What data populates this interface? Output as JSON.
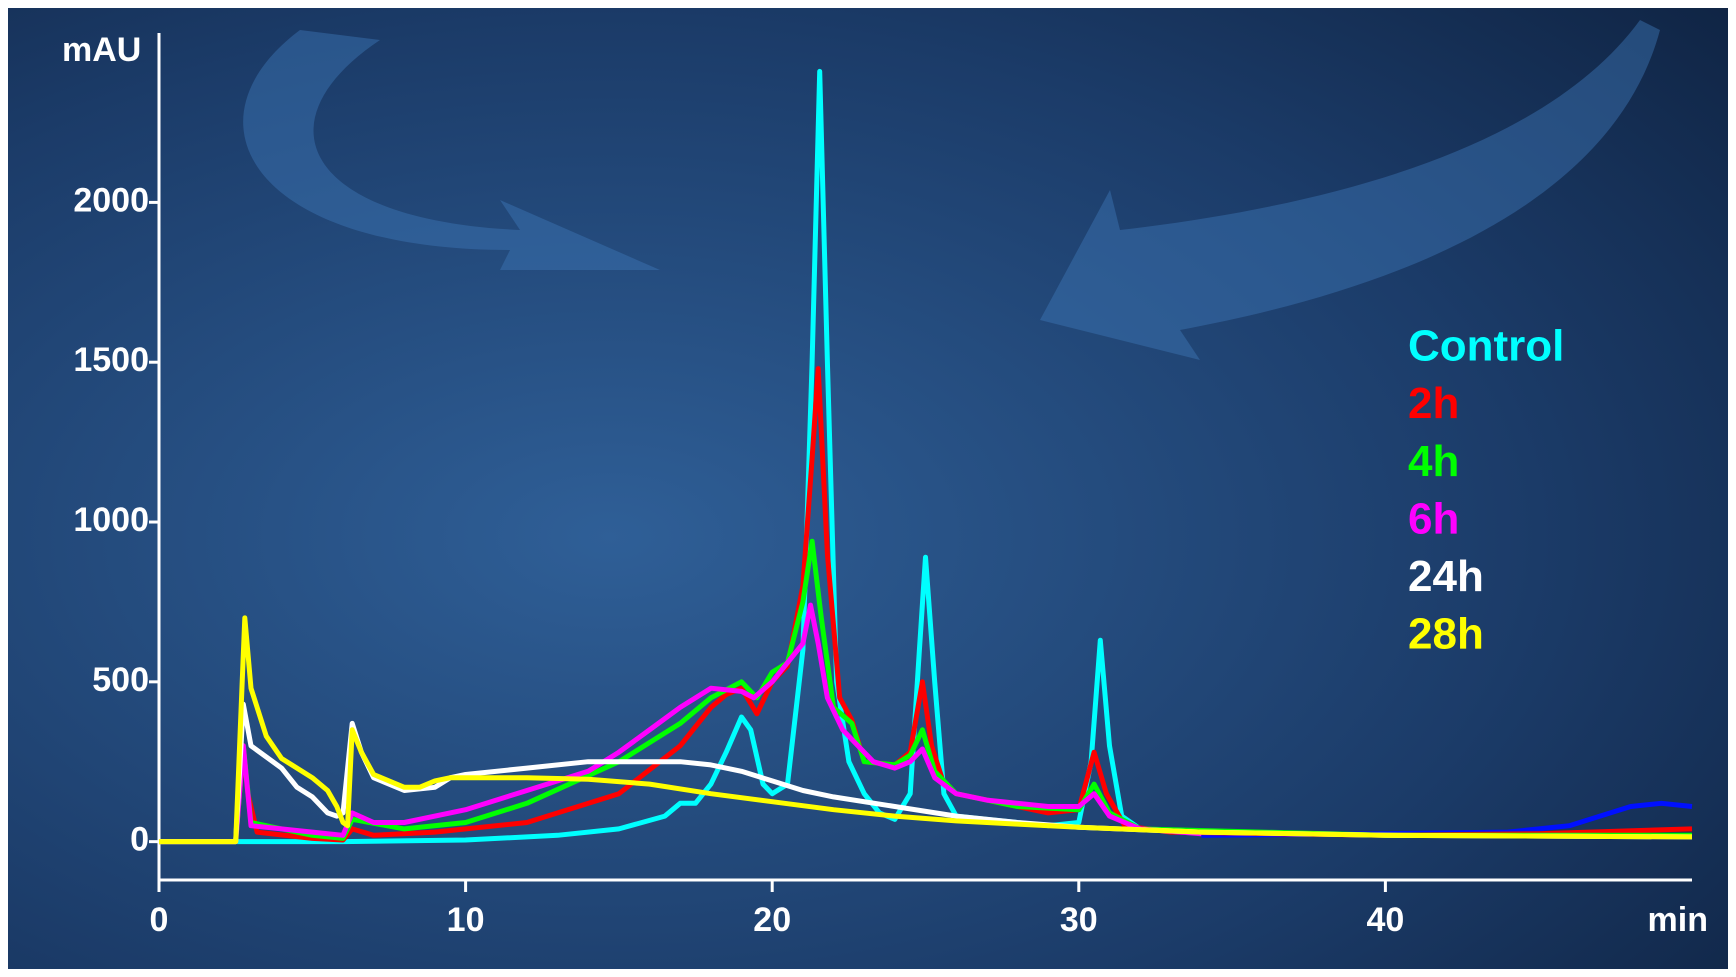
{
  "chart_data": {
    "type": "line",
    "y_label": "mAU",
    "x_label": "min",
    "xlim": [
      0,
      50
    ],
    "ylim": [
      -120,
      2530
    ],
    "xticks": [
      0,
      10,
      20,
      30,
      40
    ],
    "yticks": [
      0,
      500,
      1000,
      1500,
      2000
    ],
    "series": [
      {
        "color": "#0010ff",
        "x": [
          34,
          40,
          44,
          46,
          47,
          48,
          49,
          50
        ],
        "values": [
          20,
          25,
          30,
          50,
          80,
          110,
          120,
          110
        ]
      },
      {
        "name": "Control",
        "color": "#00ffff",
        "x": [
          0,
          2.5,
          6,
          10,
          13,
          15,
          16.5,
          17,
          17.5,
          18,
          18.5,
          19,
          19.3,
          19.7,
          20,
          20.5,
          21,
          21.3,
          21.55,
          21.8,
          22.1,
          22.5,
          23,
          23.5,
          24,
          24.5,
          24.8,
          25,
          25.3,
          25.6,
          26,
          27,
          29,
          30,
          30.4,
          30.7,
          31,
          31.4,
          32,
          34
        ],
        "values": [
          0,
          0,
          0,
          5,
          20,
          40,
          80,
          120,
          120,
          180,
          280,
          390,
          350,
          180,
          150,
          180,
          600,
          1500,
          2410,
          1500,
          500,
          250,
          150,
          90,
          70,
          150,
          600,
          890,
          500,
          150,
          80,
          70,
          50,
          60,
          250,
          630,
          300,
          80,
          40,
          30
        ]
      },
      {
        "name": "2h",
        "color": "#ff0000",
        "x": [
          0,
          2.5,
          2.75,
          2.9,
          3.2,
          5,
          6,
          6.3,
          7,
          9,
          12,
          15,
          17,
          18,
          18.5,
          19,
          19.5,
          20,
          20.5,
          21,
          21.3,
          21.5,
          21.8,
          22.2,
          22.6,
          23,
          24,
          24.5,
          24.9,
          25.2,
          25.6,
          26,
          27,
          28,
          29,
          30,
          30.5,
          30.9,
          31.5,
          33,
          40,
          45,
          50
        ],
        "values": [
          0,
          0,
          300,
          150,
          30,
          10,
          5,
          40,
          20,
          30,
          60,
          150,
          300,
          420,
          460,
          480,
          400,
          500,
          550,
          800,
          1200,
          1480,
          900,
          450,
          380,
          250,
          240,
          280,
          500,
          300,
          180,
          150,
          130,
          110,
          90,
          100,
          280,
          150,
          50,
          30,
          20,
          25,
          40
        ]
      },
      {
        "name": "4h",
        "color": "#00ff00",
        "x": [
          0,
          2.5,
          2.75,
          3,
          5,
          6,
          6.3,
          8,
          10,
          12,
          15,
          17,
          18,
          19,
          19.5,
          20,
          20.5,
          21,
          21.3,
          21.6,
          22,
          22.6,
          23,
          24,
          24.5,
          24.9,
          25.3,
          26,
          28,
          30,
          30.5,
          31,
          32,
          40,
          50
        ],
        "values": [
          0,
          0,
          300,
          60,
          20,
          10,
          70,
          40,
          60,
          120,
          250,
          370,
          450,
          500,
          450,
          530,
          560,
          750,
          940,
          700,
          420,
          370,
          250,
          240,
          270,
          350,
          220,
          150,
          110,
          100,
          180,
          90,
          40,
          20,
          20
        ]
      },
      {
        "name": "6h",
        "color": "#ff00ff",
        "x": [
          0,
          2.5,
          2.75,
          3,
          5,
          6,
          6.3,
          7,
          8,
          10,
          12,
          14,
          15,
          16,
          17,
          18,
          19,
          19.4,
          20,
          20.5,
          21,
          21.25,
          21.5,
          21.8,
          22.3,
          22.8,
          23.3,
          24,
          24.5,
          24.9,
          25.3,
          26,
          27,
          29,
          30,
          30.5,
          31,
          32,
          34
        ],
        "values": [
          0,
          0,
          300,
          50,
          30,
          20,
          90,
          60,
          60,
          100,
          160,
          220,
          280,
          350,
          420,
          480,
          470,
          450,
          500,
          560,
          620,
          740,
          620,
          450,
          350,
          300,
          250,
          230,
          250,
          290,
          200,
          150,
          130,
          110,
          110,
          150,
          80,
          40,
          25
        ]
      },
      {
        "name": "24h",
        "color": "#ffffff",
        "x": [
          0,
          2.5,
          2.75,
          3,
          4,
          4.5,
          5,
          5.5,
          5.8,
          6,
          6.3,
          6.6,
          7,
          8,
          9,
          9.5,
          10,
          12,
          14,
          16,
          17,
          18,
          19,
          20,
          21,
          22,
          24,
          26,
          28,
          30,
          34,
          40,
          50
        ],
        "values": [
          0,
          0,
          430,
          300,
          230,
          170,
          140,
          90,
          80,
          90,
          370,
          280,
          200,
          160,
          170,
          200,
          210,
          230,
          250,
          250,
          250,
          240,
          220,
          190,
          160,
          140,
          110,
          80,
          60,
          45,
          30,
          20,
          15
        ]
      },
      {
        "name": "28h",
        "color": "#ffff00",
        "x": [
          0,
          2.5,
          2.8,
          3,
          3.5,
          4,
          4.5,
          5,
          5.5,
          5.8,
          6,
          6.15,
          6.3,
          6.6,
          7,
          8,
          8.5,
          9,
          9.5,
          10,
          12,
          14,
          16,
          18,
          20,
          22,
          24,
          26,
          28,
          30,
          34,
          40,
          50
        ],
        "values": [
          0,
          0,
          700,
          480,
          330,
          260,
          230,
          200,
          160,
          110,
          60,
          50,
          350,
          280,
          210,
          170,
          170,
          190,
          200,
          200,
          200,
          195,
          180,
          150,
          125,
          100,
          80,
          65,
          55,
          45,
          30,
          20,
          15
        ]
      }
    ]
  }
}
